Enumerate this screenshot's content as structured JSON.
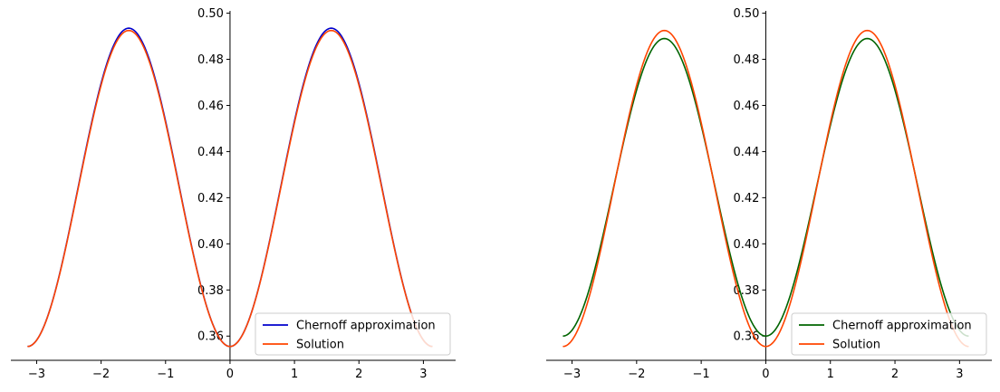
{
  "chart_data": [
    {
      "type": "line",
      "title": "",
      "xlabel": "",
      "ylabel": "",
      "xlim": [
        -3.4,
        3.5
      ],
      "ylim": [
        0.3495,
        0.501
      ],
      "xticks": [
        -3,
        -2,
        -1,
        0,
        1,
        2,
        3
      ],
      "xtick_labels": [
        "−3",
        "−2",
        "−1",
        "0",
        "1",
        "2",
        "3"
      ],
      "yticks": [
        0.36,
        0.38,
        0.4,
        0.42,
        0.44,
        0.46,
        0.48,
        0.5
      ],
      "ytick_labels": [
        "0.36",
        "0.38",
        "0.40",
        "0.42",
        "0.44",
        "0.46",
        "0.48",
        "0.50"
      ],
      "spines": "centered at origin (left and bottom only)",
      "legend": {
        "position": "bottom-right",
        "entries": [
          "Chernoff approximation",
          "Solution"
        ]
      },
      "x_range": [
        -3.14159,
        3.14159
      ],
      "series": [
        {
          "name": "Chernoff approximation",
          "color": "#0000cd",
          "formula": "0.4245 - 0.069*cos(2x)",
          "mid": 0.4245,
          "amplitude": -0.069
        },
        {
          "name": "Solution",
          "color": "#ff4500",
          "formula": "0.424 - 0.0685*cos(2x)",
          "mid": 0.424,
          "amplitude": -0.0685
        }
      ]
    },
    {
      "type": "line",
      "title": "",
      "xlabel": "",
      "ylabel": "",
      "xlim": [
        -3.4,
        3.5
      ],
      "ylim": [
        0.3495,
        0.501
      ],
      "xticks": [
        -3,
        -2,
        -1,
        0,
        1,
        2,
        3
      ],
      "xtick_labels": [
        "−3",
        "−2",
        "−1",
        "0",
        "1",
        "2",
        "3"
      ],
      "yticks": [
        0.36,
        0.38,
        0.4,
        0.42,
        0.44,
        0.46,
        0.48,
        0.5
      ],
      "ytick_labels": [
        "0.36",
        "0.38",
        "0.40",
        "0.42",
        "0.44",
        "0.46",
        "0.48",
        "0.50"
      ],
      "spines": "centered at origin (left and bottom only)",
      "legend": {
        "position": "bottom-right",
        "entries": [
          "Chernoff approximation",
          "Solution"
        ]
      },
      "x_range": [
        -3.14159,
        3.14159
      ],
      "series": [
        {
          "name": "Chernoff approximation",
          "color": "#006400",
          "formula": "0.4245 - 0.0645*cos(2x)",
          "mid": 0.4245,
          "amplitude": -0.0645
        },
        {
          "name": "Solution",
          "color": "#ff4500",
          "formula": "0.424 - 0.0685*cos(2x)",
          "mid": 0.424,
          "amplitude": -0.0685
        }
      ]
    }
  ]
}
